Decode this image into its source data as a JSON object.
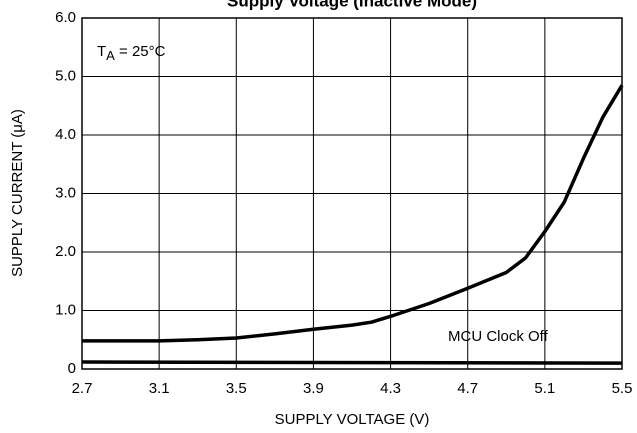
{
  "chart_data": {
    "type": "line",
    "title": "Supply Voltage (Inactive Mode)",
    "xlabel": "SUPPLY VOLTAGE (V)",
    "ylabel": "SUPPLY CURRENT (μA)",
    "temperature_note": {
      "main": "T",
      "sub": "A",
      "rest": " = 25°C"
    },
    "annotation": "MCU Clock Off",
    "series": [
      {
        "color": "#000000",
        "x": [
          2.7,
          3.1,
          3.3,
          3.5,
          3.7,
          3.9,
          4.1,
          4.2,
          4.3,
          4.5,
          4.7,
          4.9,
          5.0,
          5.1,
          5.2,
          5.3,
          5.4,
          5.5
        ],
        "values": [
          0.48,
          0.48,
          0.5,
          0.53,
          0.6,
          0.68,
          0.75,
          0.8,
          0.9,
          1.12,
          1.38,
          1.65,
          1.9,
          2.35,
          2.85,
          3.6,
          4.3,
          4.85
        ]
      },
      {
        "color": "#000000",
        "x": [
          2.7,
          5.5
        ],
        "values": [
          0.12,
          0.1
        ]
      }
    ],
    "xlim": [
      2.7,
      5.5
    ],
    "xticks": [
      2.7,
      3.1,
      3.5,
      3.9,
      4.3,
      4.7,
      5.1,
      5.5
    ],
    "ylim": [
      0,
      6
    ],
    "yticks": [
      0,
      {
        "value": 1,
        "label": "1.0"
      },
      {
        "value": 2,
        "label": "2.0"
      },
      {
        "value": 3,
        "label": "3.0"
      },
      {
        "value": 4,
        "label": "4.0"
      },
      {
        "value": 5,
        "label": "5.0"
      },
      {
        "value": 6,
        "label": "6.0"
      }
    ],
    "grid": true
  }
}
